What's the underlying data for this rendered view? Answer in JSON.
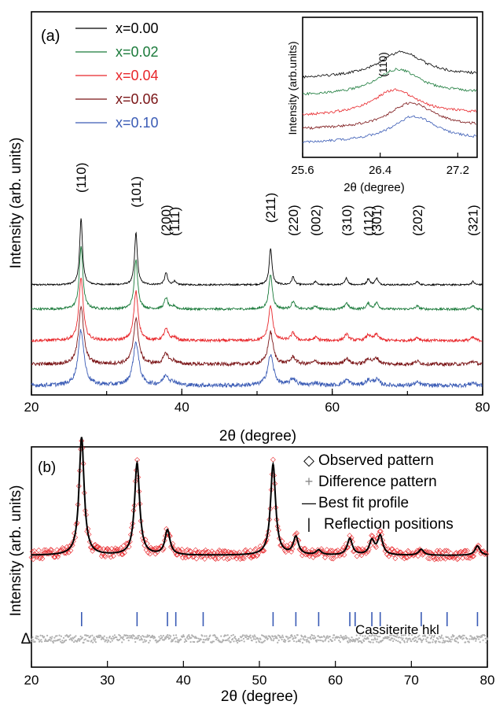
{
  "chart_data": [
    {
      "type": "line",
      "panel_label": "(a)",
      "xlabel": "2θ (degree)",
      "ylabel": "Intensity (arb. units)",
      "xlim": [
        20,
        80
      ],
      "xticks": [
        "20",
        "40",
        "60",
        "80"
      ],
      "legend_position": "top-left",
      "series": [
        {
          "name": "x=0.00",
          "color": "#000000",
          "offset": 4,
          "intensity": 1.0
        },
        {
          "name": "x=0.02",
          "color": "#1a7a3a",
          "offset": 3,
          "intensity": 0.95
        },
        {
          "name": "x=0.04",
          "color": "#e8262a",
          "offset": 2,
          "intensity": 0.9
        },
        {
          "name": "x=0.06",
          "color": "#7a1416",
          "offset": 1,
          "intensity": 0.85
        },
        {
          "name": "x=0.10",
          "color": "#3a5bb5",
          "offset": 0,
          "intensity": 0.75
        }
      ],
      "peaks": [
        {
          "hkl": "(110)",
          "two_theta": 26.6,
          "height": 1.0
        },
        {
          "hkl": "(101)",
          "two_theta": 33.9,
          "height": 0.78
        },
        {
          "hkl": "(200)",
          "two_theta": 37.9,
          "height": 0.18
        },
        {
          "hkl": "(111)",
          "two_theta": 39.0,
          "height": 0.05
        },
        {
          "hkl": "(211)",
          "two_theta": 51.8,
          "height": 0.55
        },
        {
          "hkl": "(220)",
          "two_theta": 54.8,
          "height": 0.12
        },
        {
          "hkl": "(002)",
          "two_theta": 57.8,
          "height": 0.05
        },
        {
          "hkl": "(310)",
          "two_theta": 61.9,
          "height": 0.1
        },
        {
          "hkl": "(112)",
          "two_theta": 64.8,
          "height": 0.09
        },
        {
          "hkl": "(301)",
          "two_theta": 65.9,
          "height": 0.1
        },
        {
          "hkl": "(202)",
          "two_theta": 71.3,
          "height": 0.05
        },
        {
          "hkl": "(321)",
          "two_theta": 78.7,
          "height": 0.05
        }
      ],
      "inset": {
        "xlabel": "2θ (degree)",
        "ylabel": "Intensity (arb.units)",
        "xlim": [
          25.6,
          27.4
        ],
        "xticks": [
          "25.6",
          "26.4",
          "27.2"
        ],
        "annotation": "(110)",
        "peak_positions": [
          26.62,
          26.58,
          26.55,
          26.72,
          26.75
        ]
      }
    },
    {
      "type": "scatter",
      "panel_label": "(b)",
      "xlabel": "2θ (degree)",
      "ylabel": "Intensity (arb. units)",
      "ylabel_prefix": "Δ",
      "xlim": [
        20,
        80
      ],
      "xticks": [
        "20",
        "30",
        "40",
        "50",
        "60",
        "70",
        "80"
      ],
      "legend_position": "top-right",
      "legend": [
        {
          "symbol": "◇",
          "label": "Observed pattern",
          "color": "#000000"
        },
        {
          "symbol": "+",
          "label": "Difference pattern",
          "color": "#888888"
        },
        {
          "symbol": "—",
          "label": "Best fit profile",
          "color": "#000000"
        },
        {
          "symbol": "|",
          "label": "Reflection positions",
          "color": "#000000"
        }
      ],
      "hkl_label": "Cassiterite hkl",
      "reflection_positions": [
        26.6,
        33.9,
        37.9,
        39.0,
        42.6,
        51.8,
        54.8,
        57.8,
        61.9,
        62.6,
        64.8,
        65.9,
        71.3,
        74.7,
        78.7
      ],
      "observed_color": "#e8262a",
      "fit_color": "#000000",
      "difference_color": "#b0b0b0",
      "reflection_color": "#3a5bb5"
    }
  ]
}
